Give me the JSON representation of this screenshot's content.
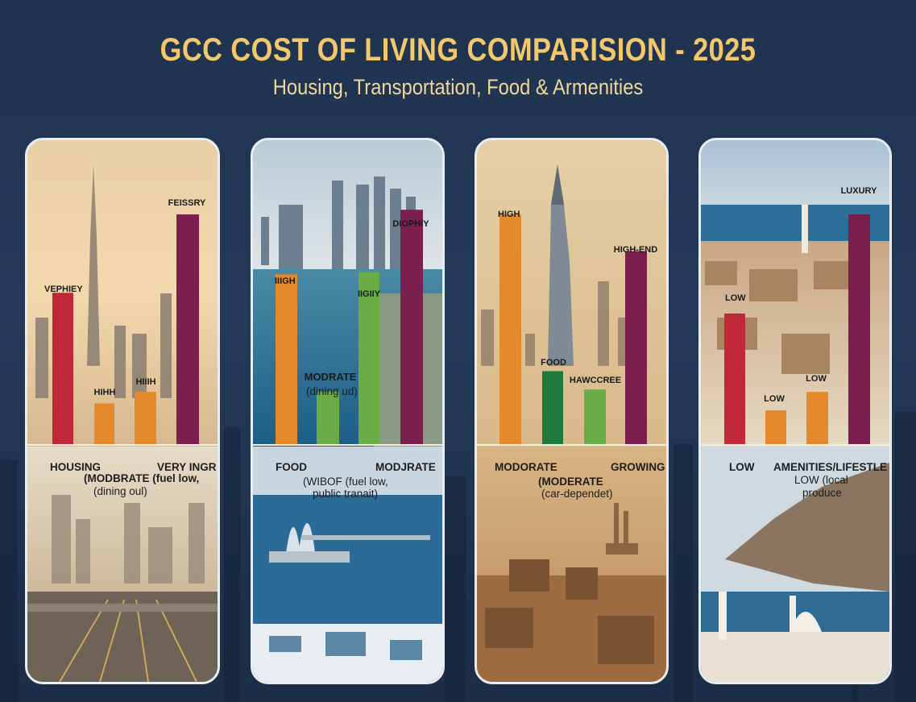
{
  "title": "GCC COST OF LIVING COMPARISION - 2025",
  "subtitle": "Housing, Transportation, Food & Armenities",
  "colors": {
    "background": "#223655",
    "title": "#f2c86a",
    "subtitle": "#f0d89a",
    "red": "#c0283a",
    "orange": "#e58a2c",
    "green": "#6aac45",
    "dark_green": "#1e7a3c",
    "purple": "#7a1f4e"
  },
  "chart_data": [
    {
      "type": "bar",
      "panel": 1,
      "value_scale": [
        0,
        10
      ],
      "bars": [
        {
          "label": "VEPHIEY",
          "value": 6.6,
          "color": "red"
        },
        {
          "label": "HIHH",
          "value": 1.8,
          "color": "orange"
        },
        {
          "label": "HIIIH",
          "value": 2.3,
          "color": "orange"
        },
        {
          "label": "FEISSRY",
          "value": 10.0,
          "color": "purple"
        }
      ],
      "captions": [
        {
          "text": "HOUSING",
          "bold": true
        },
        {
          "text": "(MODBRATE (fuel low,",
          "bold": true
        },
        {
          "text": "(dining oul)",
          "bold": false
        },
        {
          "text": "VERY INGR",
          "bold": true
        }
      ]
    },
    {
      "type": "bar",
      "panel": 2,
      "value_scale": [
        0,
        10
      ],
      "bars": [
        {
          "label": "IIIGH",
          "value": 7.4,
          "color": "orange"
        },
        {
          "label": "MODRATE",
          "sublabel": "(dining ud)",
          "value": 2.3,
          "color": "green"
        },
        {
          "label": "IIGIIY",
          "value": 7.5,
          "color": "green"
        },
        {
          "label": "DIOPHIY",
          "value": 10.2,
          "color": "purple"
        }
      ],
      "captions": [
        {
          "text": "FOOD",
          "bold": true
        },
        {
          "text": "(WIBOF (fuel low,",
          "bold": false
        },
        {
          "text": "public tranait)",
          "bold": false
        },
        {
          "text": "MODJRATE",
          "bold": true
        }
      ]
    },
    {
      "type": "bar",
      "panel": 3,
      "value_scale": [
        0,
        10
      ],
      "bars": [
        {
          "label": "HIGH",
          "value": 10.0,
          "color": "orange"
        },
        {
          "label": "FOOD",
          "value": 3.2,
          "color": "dark_green"
        },
        {
          "label": "HAWCCREE",
          "value": 2.4,
          "color": "green"
        },
        {
          "label": "HIGH-END",
          "value": 8.4,
          "color": "purple"
        }
      ],
      "captions": [
        {
          "text": "MODORATE",
          "bold": true
        },
        {
          "text": "(MODERATE",
          "bold": true
        },
        {
          "text": "(car-dependet)",
          "bold": false
        },
        {
          "text": "GROWING",
          "bold": true
        }
      ]
    },
    {
      "type": "bar",
      "panel": 4,
      "value_scale": [
        0,
        10
      ],
      "bars": [
        {
          "label": "LOW",
          "value": 5.7,
          "color": "red"
        },
        {
          "label": "LOW",
          "value": 1.5,
          "color": "orange"
        },
        {
          "label": "LOW",
          "value": 2.3,
          "color": "orange"
        },
        {
          "label": "LUXURY",
          "value": 10.0,
          "color": "purple"
        }
      ],
      "captions": [
        {
          "text": "LOW",
          "bold": true
        },
        {
          "text": "AMENITIES/LIFESTLE",
          "bold": true
        },
        {
          "text": "LOW (local",
          "bold": false
        },
        {
          "text": "produce",
          "bold": false
        }
      ]
    }
  ]
}
